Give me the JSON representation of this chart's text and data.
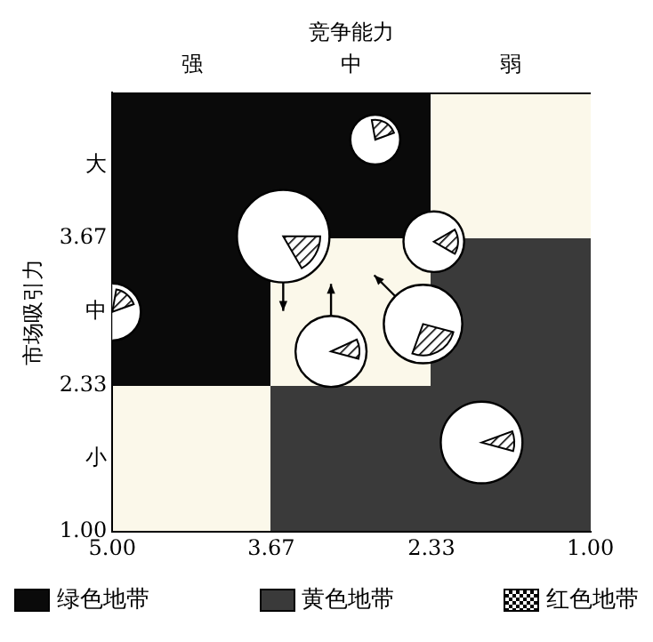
{
  "chart_data": {
    "type": "bubble",
    "x2label": "竞争能力",
    "ylabel": "市场吸引力",
    "x": [
      2.8,
      3.57,
      2.31,
      5.0,
      3.17,
      2.4,
      1.91
    ],
    "values": [
      4.57,
      3.69,
      3.64,
      3.0,
      2.64,
      2.89,
      1.81
    ],
    "sizes": [
      0.29,
      1,
      0.43,
      0.38,
      0.59,
      0.72,
      0.78
    ],
    "color": "#ffffff",
    "xlim": [
      5,
      1
    ],
    "xticks": [
      {
        "value": 5,
        "label": "5.00"
      },
      3.67,
      2.33,
      {
        "value": 1,
        "label": "1.00"
      }
    ],
    "ylim": [
      1,
      5
    ],
    "yticks": [
      {
        "value": 1,
        "label": "1.00"
      },
      {
        "value": 1.665,
        "label": "小"
      },
      2.33,
      {
        "value": 3,
        "label": "中"
      },
      3.67,
      {
        "value": 4.335,
        "label": "大"
      }
    ],
    "annotations": [
      "强",
      "中",
      "弱",
      "绿色地带",
      "黄色地带",
      "红色地带"
    ]
  }
}
